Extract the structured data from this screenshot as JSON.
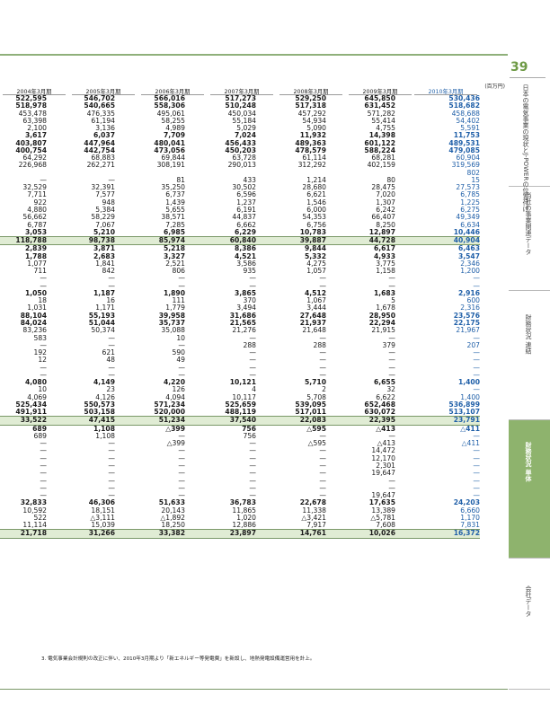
{
  "unit": "(百万円)",
  "columns": [
    "2004年3月期",
    "2005年3月期",
    "2006年3月期",
    "2007年3月期",
    "2008年3月期",
    "2009年3月期",
    "2010年3月期"
  ],
  "rows": [
    [
      "522,595",
      "546,702",
      "566,016",
      "517,273",
      "529,250",
      "645,850",
      "530,436"
    ],
    [
      "518,978",
      "540,665",
      "558,306",
      "510,248",
      "517,318",
      "631,452",
      "518,682"
    ],
    [
      "453,478",
      "476,335",
      "495,061",
      "450,034",
      "457,292",
      "571,282",
      "458,688"
    ],
    [
      "63,398",
      "61,194",
      "58,255",
      "55,184",
      "54,934",
      "55,414",
      "54,402"
    ],
    [
      "2,100",
      "3,136",
      "4,989",
      "5,029",
      "5,090",
      "4,755",
      "5,591"
    ],
    [
      "3,617",
      "6,037",
      "7,709",
      "7,024",
      "11,932",
      "14,398",
      "11,753"
    ],
    [
      "403,807",
      "447,964",
      "480,041",
      "456,433",
      "489,363",
      "601,122",
      "489,531"
    ],
    [
      "400,754",
      "442,754",
      "473,056",
      "450,203",
      "478,579",
      "588,224",
      "479,085"
    ],
    [
      "64,292",
      "68,883",
      "69,844",
      "63,728",
      "61,114",
      "68,281",
      "60,904"
    ],
    [
      "226,968",
      "262,271",
      "308,191",
      "290,013",
      "312,292",
      "402,159",
      "319,569"
    ],
    [
      "",
      "",
      "",
      "",
      "",
      "",
      "802"
    ],
    [
      "—",
      "—",
      "81",
      "433",
      "1,214",
      "80",
      "15"
    ],
    [
      "32,529",
      "32,391",
      "35,250",
      "30,502",
      "28,680",
      "28,475",
      "27,573"
    ],
    [
      "7,711",
      "7,577",
      "6,737",
      "6,596",
      "6,621",
      "7,020",
      "6,785"
    ],
    [
      "922",
      "948",
      "1,439",
      "1,237",
      "1,546",
      "1,307",
      "1,225"
    ],
    [
      "4,880",
      "5,384",
      "5,655",
      "6,191",
      "6,000",
      "6,242",
      "6,275"
    ],
    [
      "56,662",
      "58,229",
      "38,571",
      "44,837",
      "54,353",
      "66,407",
      "49,349"
    ],
    [
      "6,787",
      "7,067",
      "7,285",
      "6,662",
      "6,756",
      "8,250",
      "6,634"
    ],
    [
      "3,053",
      "5,210",
      "6,985",
      "6,229",
      "10,783",
      "12,897",
      "10,446"
    ],
    [
      "118,788",
      "98,738",
      "85,974",
      "60,840",
      "39,887",
      "44,728",
      "40,904"
    ],
    [
      "2,839",
      "3,871",
      "5,218",
      "8,386",
      "9,844",
      "6,617",
      "6,463"
    ],
    [
      "1,788",
      "2,683",
      "3,327",
      "4,521",
      "5,332",
      "4,933",
      "3,547"
    ],
    [
      "1,077",
      "1,841",
      "2,521",
      "3,586",
      "4,275",
      "3,775",
      "2,346"
    ],
    [
      "711",
      "842",
      "806",
      "935",
      "1,057",
      "1,158",
      "1,200"
    ],
    [
      "—",
      "—",
      "—",
      "—",
      "—",
      "—",
      "—"
    ],
    [
      "—",
      "—",
      "—",
      "—",
      "—",
      "—",
      "—"
    ],
    [
      "1,050",
      "1,187",
      "1,890",
      "3,865",
      "4,512",
      "1,683",
      "2,916"
    ],
    [
      "18",
      "16",
      "111",
      "370",
      "1,067",
      "5",
      "600"
    ],
    [
      "1,031",
      "1,171",
      "1,779",
      "3,494",
      "3,444",
      "1,678",
      "2,316"
    ],
    [
      "88,104",
      "55,193",
      "39,958",
      "31,686",
      "27,648",
      "28,950",
      "23,576"
    ],
    [
      "84,024",
      "51,044",
      "35,737",
      "21,565",
      "21,937",
      "22,294",
      "22,175"
    ],
    [
      "83,236",
      "50,374",
      "35,088",
      "21,276",
      "21,648",
      "21,915",
      "21,967"
    ],
    [
      "583",
      "—",
      "10",
      "—",
      "—",
      "—",
      "—"
    ],
    [
      "—",
      "—",
      "—",
      "288",
      "288",
      "379",
      "207"
    ],
    [
      "192",
      "621",
      "590",
      "—",
      "—",
      "—",
      "—"
    ],
    [
      "12",
      "48",
      "49",
      "—",
      "—",
      "—",
      "—"
    ],
    [
      "—",
      "—",
      "—",
      "—",
      "—",
      "—",
      "—"
    ],
    [
      "—",
      "—",
      "—",
      "—",
      "—",
      "—",
      "—"
    ],
    [
      "4,080",
      "4,149",
      "4,220",
      "10,121",
      "5,710",
      "6,655",
      "1,400"
    ],
    [
      "10",
      "23",
      "126",
      "4",
      "2",
      "32",
      "—"
    ],
    [
      "4,069",
      "4,126",
      "4,094",
      "10,117",
      "5,708",
      "6,622",
      "1,400"
    ],
    [
      "525,434",
      "550,573",
      "571,234",
      "525,659",
      "539,095",
      "652,468",
      "536,899"
    ],
    [
      "491,911",
      "503,158",
      "520,000",
      "488,119",
      "517,011",
      "630,072",
      "513,107"
    ],
    [
      "33,522",
      "47,415",
      "51,234",
      "37,540",
      "22,083",
      "22,395",
      "23,791"
    ],
    [
      "689",
      "1,108",
      "△399",
      "756",
      "△595",
      "△413",
      "△411"
    ],
    [
      "689",
      "1,108",
      "—",
      "756",
      "—",
      "—",
      "—"
    ],
    [
      "—",
      "—",
      "△399",
      "—",
      "△595",
      "△413",
      "△411"
    ],
    [
      "—",
      "—",
      "—",
      "—",
      "—",
      "14,472",
      "—"
    ],
    [
      "—",
      "—",
      "—",
      "—",
      "—",
      "12,170",
      "—"
    ],
    [
      "—",
      "—",
      "—",
      "—",
      "—",
      "2,301",
      "—"
    ],
    [
      "—",
      "—",
      "—",
      "—",
      "—",
      "19,647",
      "—"
    ],
    [
      "—",
      "—",
      "—",
      "—",
      "—",
      "—",
      "—"
    ],
    [
      "—",
      "—",
      "—",
      "—",
      "—",
      "—",
      "—"
    ],
    [
      "—",
      "—",
      "—",
      "—",
      "—",
      "19,647",
      "—"
    ],
    [
      "32,833",
      "46,306",
      "51,633",
      "36,783",
      "22,678",
      "17,635",
      "24,203"
    ],
    [
      "10,592",
      "18,151",
      "20,143",
      "11,865",
      "11,338",
      "13,389",
      "6,660"
    ],
    [
      "522",
      "△3,111",
      "△1,892",
      "1,020",
      "△3,421",
      "△5,781",
      "1,170"
    ],
    [
      "11,114",
      "15,039",
      "18,250",
      "12,886",
      "7,917",
      "7,608",
      "7,831"
    ],
    [
      "21,718",
      "31,266",
      "33,382",
      "23,897",
      "14,761",
      "10,026",
      "16,372"
    ]
  ],
  "bold_rows": [
    0,
    1,
    5,
    6,
    7,
    18,
    19,
    20,
    21,
    26,
    29,
    30,
    38,
    41,
    42,
    43,
    44,
    54,
    58
  ],
  "band_rows": [
    19,
    43,
    58
  ],
  "footnote": "3. 電気事業会計規則の改正に伴い、2010年3月期より「新エネルギー等発電費」を新設し、地熱発電設備運営用を計上。",
  "sidebar": {
    "page_number": "39",
    "tabs": [
      "日本の電気事業の現状とJ-POWERの位置付け",
      "当社の事業関連データ",
      "財務状況 連結",
      "財務状況 単体",
      "会社データ"
    ]
  }
}
